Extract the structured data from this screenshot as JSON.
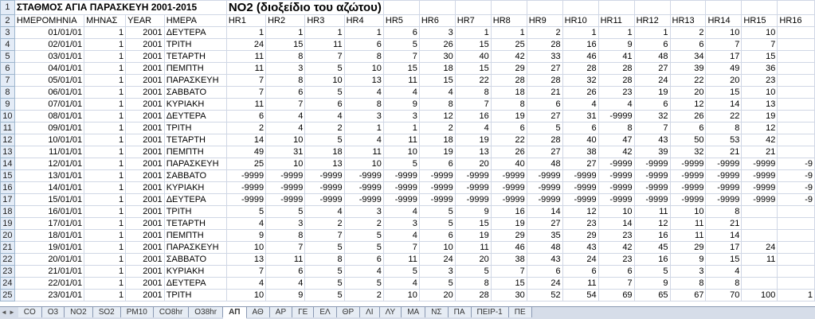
{
  "window": {
    "title_station": "ΣΤΑΘΜΟΣ ΑΓΙΑ ΠΑΡΑΣΚΕΥΗ 2001-2015",
    "title_pollutant": "NO2 (διοξείδιο του αζώτου)"
  },
  "sheet": {
    "column_headers": [
      "ΗΜΕΡΟΜΗΝΙΑ",
      "ΜΗΝΑΣ",
      "YEAR",
      "ΗΜΕΡΑ",
      "HR1",
      "HR2",
      "HR3",
      "HR4",
      "HR5",
      "HR6",
      "HR7",
      "HR8",
      "HR9",
      "HR10",
      "HR11",
      "HR12",
      "HR13",
      "HR14",
      "HR15",
      "HR16"
    ],
    "rows": [
      [
        "01/01/01",
        "1",
        "2001",
        "ΔΕΥΤΕΡΑ",
        "1",
        "1",
        "1",
        "1",
        "6",
        "3",
        "1",
        "1",
        "2",
        "1",
        "1",
        "1",
        "2",
        "10",
        "10",
        ""
      ],
      [
        "02/01/01",
        "1",
        "2001",
        "ΤΡΙΤΗ",
        "24",
        "15",
        "11",
        "6",
        "5",
        "26",
        "15",
        "25",
        "28",
        "16",
        "9",
        "6",
        "6",
        "7",
        "7",
        ""
      ],
      [
        "03/01/01",
        "1",
        "2001",
        "ΤΕΤΑΡΤΗ",
        "11",
        "8",
        "7",
        "8",
        "7",
        "30",
        "40",
        "42",
        "33",
        "46",
        "41",
        "48",
        "34",
        "17",
        "15",
        ""
      ],
      [
        "04/01/01",
        "1",
        "2001",
        "ΠΕΜΠΤΗ",
        "11",
        "3",
        "5",
        "10",
        "15",
        "18",
        "15",
        "29",
        "27",
        "28",
        "28",
        "27",
        "39",
        "49",
        "36",
        ""
      ],
      [
        "05/01/01",
        "1",
        "2001",
        "ΠΑΡΑΣΚΕΥΗ",
        "7",
        "8",
        "10",
        "13",
        "11",
        "15",
        "22",
        "28",
        "28",
        "32",
        "28",
        "24",
        "22",
        "20",
        "23",
        ""
      ],
      [
        "06/01/01",
        "1",
        "2001",
        "ΣΑΒΒΑΤΟ",
        "7",
        "6",
        "5",
        "4",
        "4",
        "4",
        "8",
        "18",
        "21",
        "26",
        "23",
        "19",
        "20",
        "15",
        "10",
        ""
      ],
      [
        "07/01/01",
        "1",
        "2001",
        "ΚΥΡΙΑΚΗ",
        "11",
        "7",
        "6",
        "8",
        "9",
        "8",
        "7",
        "8",
        "6",
        "4",
        "4",
        "6",
        "12",
        "14",
        "13",
        ""
      ],
      [
        "08/01/01",
        "1",
        "2001",
        "ΔΕΥΤΕΡΑ",
        "6",
        "4",
        "4",
        "3",
        "3",
        "12",
        "16",
        "19",
        "27",
        "31",
        "-9999",
        "32",
        "26",
        "22",
        "19",
        ""
      ],
      [
        "09/01/01",
        "1",
        "2001",
        "ΤΡΙΤΗ",
        "2",
        "4",
        "2",
        "1",
        "1",
        "2",
        "4",
        "6",
        "5",
        "6",
        "8",
        "7",
        "6",
        "8",
        "12",
        ""
      ],
      [
        "10/01/01",
        "1",
        "2001",
        "ΤΕΤΑΡΤΗ",
        "14",
        "10",
        "5",
        "4",
        "11",
        "18",
        "19",
        "22",
        "28",
        "40",
        "47",
        "43",
        "50",
        "53",
        "42",
        ""
      ],
      [
        "11/01/01",
        "1",
        "2001",
        "ΠΕΜΠΤΗ",
        "49",
        "31",
        "18",
        "11",
        "10",
        "19",
        "13",
        "26",
        "27",
        "38",
        "42",
        "39",
        "32",
        "21",
        "21",
        ""
      ],
      [
        "12/01/01",
        "1",
        "2001",
        "ΠΑΡΑΣΚΕΥΗ",
        "25",
        "10",
        "13",
        "10",
        "5",
        "6",
        "20",
        "40",
        "48",
        "27",
        "-9999",
        "-9999",
        "-9999",
        "-9999",
        "-9999",
        "-9"
      ],
      [
        "13/01/01",
        "1",
        "2001",
        "ΣΑΒΒΑΤΟ",
        "-9999",
        "-9999",
        "-9999",
        "-9999",
        "-9999",
        "-9999",
        "-9999",
        "-9999",
        "-9999",
        "-9999",
        "-9999",
        "-9999",
        "-9999",
        "-9999",
        "-9999",
        "-9"
      ],
      [
        "14/01/01",
        "1",
        "2001",
        "ΚΥΡΙΑΚΗ",
        "-9999",
        "-9999",
        "-9999",
        "-9999",
        "-9999",
        "-9999",
        "-9999",
        "-9999",
        "-9999",
        "-9999",
        "-9999",
        "-9999",
        "-9999",
        "-9999",
        "-9999",
        "-9"
      ],
      [
        "15/01/01",
        "1",
        "2001",
        "ΔΕΥΤΕΡΑ",
        "-9999",
        "-9999",
        "-9999",
        "-9999",
        "-9999",
        "-9999",
        "-9999",
        "-9999",
        "-9999",
        "-9999",
        "-9999",
        "-9999",
        "-9999",
        "-9999",
        "-9999",
        "-9"
      ],
      [
        "16/01/01",
        "1",
        "2001",
        "ΤΡΙΤΗ",
        "5",
        "5",
        "4",
        "3",
        "4",
        "5",
        "9",
        "16",
        "14",
        "12",
        "10",
        "11",
        "10",
        "8",
        ""
      ],
      [
        "17/01/01",
        "1",
        "2001",
        "ΤΕΤΑΡΤΗ",
        "4",
        "3",
        "2",
        "2",
        "3",
        "5",
        "15",
        "19",
        "27",
        "23",
        "14",
        "12",
        "11",
        "21",
        ""
      ],
      [
        "18/01/01",
        "1",
        "2001",
        "ΠΕΜΠΤΗ",
        "9",
        "8",
        "7",
        "5",
        "4",
        "6",
        "19",
        "29",
        "35",
        "29",
        "23",
        "16",
        "11",
        "14",
        ""
      ],
      [
        "19/01/01",
        "1",
        "2001",
        "ΠΑΡΑΣΚΕΥΗ",
        "10",
        "7",
        "5",
        "5",
        "7",
        "10",
        "11",
        "46",
        "48",
        "43",
        "42",
        "45",
        "29",
        "17",
        "24",
        ""
      ],
      [
        "20/01/01",
        "1",
        "2001",
        "ΣΑΒΒΑΤΟ",
        "13",
        "11",
        "8",
        "6",
        "11",
        "24",
        "20",
        "38",
        "43",
        "24",
        "23",
        "16",
        "9",
        "15",
        "11",
        ""
      ],
      [
        "21/01/01",
        "1",
        "2001",
        "ΚΥΡΙΑΚΗ",
        "7",
        "6",
        "5",
        "4",
        "5",
        "3",
        "5",
        "7",
        "6",
        "6",
        "6",
        "5",
        "3",
        "4",
        ""
      ],
      [
        "22/01/01",
        "1",
        "2001",
        "ΔΕΥΤΕΡΑ",
        "4",
        "4",
        "5",
        "5",
        "4",
        "5",
        "8",
        "15",
        "24",
        "11",
        "7",
        "9",
        "8",
        "8",
        ""
      ],
      [
        "23/01/01",
        "1",
        "2001",
        "ΤΡΙΤΗ",
        "10",
        "9",
        "5",
        "2",
        "10",
        "20",
        "28",
        "30",
        "52",
        "54",
        "69",
        "65",
        "67",
        "70",
        "100",
        "1"
      ]
    ]
  },
  "tabs": {
    "nav_labels": [
      "◄",
      "►"
    ],
    "labels": [
      "CO",
      "O3",
      "NO2",
      "SO2",
      "PM10",
      "CO8hr",
      "O38hr",
      "ΑΠ",
      "ΑΘ",
      "ΑΡ",
      "ΓΕ",
      "ΕΛ",
      "ΘΡ",
      "ΛΙ",
      "ΛΥ",
      "ΜΑ",
      "ΝΣ",
      "ΠΑ",
      "ΠΕΙΡ-1",
      "ΠΕ"
    ],
    "active": "ΑΠ"
  }
}
